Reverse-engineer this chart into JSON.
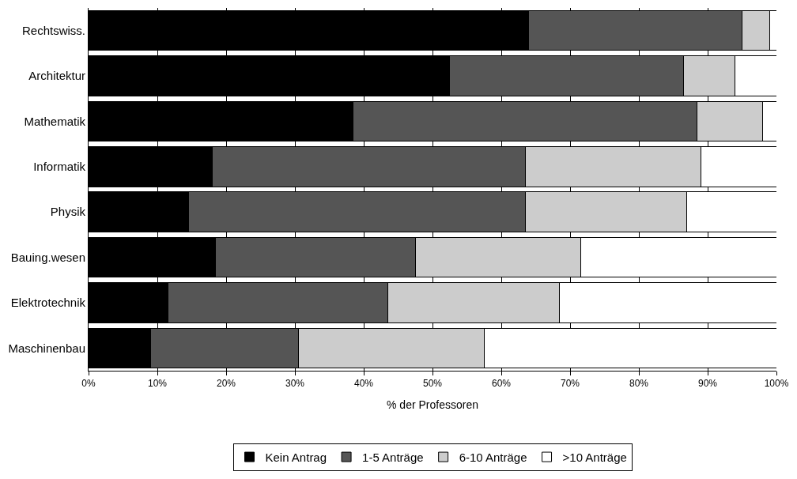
{
  "chart_data": {
    "type": "bar",
    "orientation": "horizontal",
    "stacked": true,
    "xlabel": "% der Professoren",
    "categories": [
      "Rechtswiss.",
      "Architektur",
      "Mathematik",
      "Informatik",
      "Physik",
      "Bauing.wesen",
      "Elektrotechnik",
      "Maschinenbau"
    ],
    "series": [
      {
        "name": "Kein Antrag",
        "color": "#000000",
        "values": [
          64,
          52.5,
          38.5,
          18,
          14.5,
          18.5,
          11.5,
          9
        ]
      },
      {
        "name": "1-5 Anträge",
        "color": "#555555",
        "values": [
          31,
          34,
          50,
          45.5,
          49,
          29,
          32,
          21.5
        ]
      },
      {
        "name": "6-10 Anträge",
        "color": "#cccccc",
        "values": [
          4,
          7.5,
          9.5,
          25.5,
          23.5,
          24,
          25,
          27
        ]
      },
      {
        "name": ">10 Anträge",
        "color": "#ffffff",
        "values": [
          1,
          6,
          2,
          11,
          13,
          28.5,
          31.5,
          42.5
        ]
      }
    ],
    "xlim": [
      0,
      100
    ],
    "xticks": [
      {
        "value": 0,
        "label": "0%"
      },
      {
        "value": 10,
        "label": "10%"
      },
      {
        "value": 20,
        "label": "20%"
      },
      {
        "value": 30,
        "label": "30%"
      },
      {
        "value": 40,
        "label": "40%"
      },
      {
        "value": 50,
        "label": "50%"
      },
      {
        "value": 60,
        "label": "60%"
      },
      {
        "value": 70,
        "label": "70%"
      },
      {
        "value": 80,
        "label": "80%"
      },
      {
        "value": 90,
        "label": "90%"
      },
      {
        "value": 100,
        "label": "100%"
      }
    ],
    "grid": "x",
    "legend": "bottom"
  }
}
